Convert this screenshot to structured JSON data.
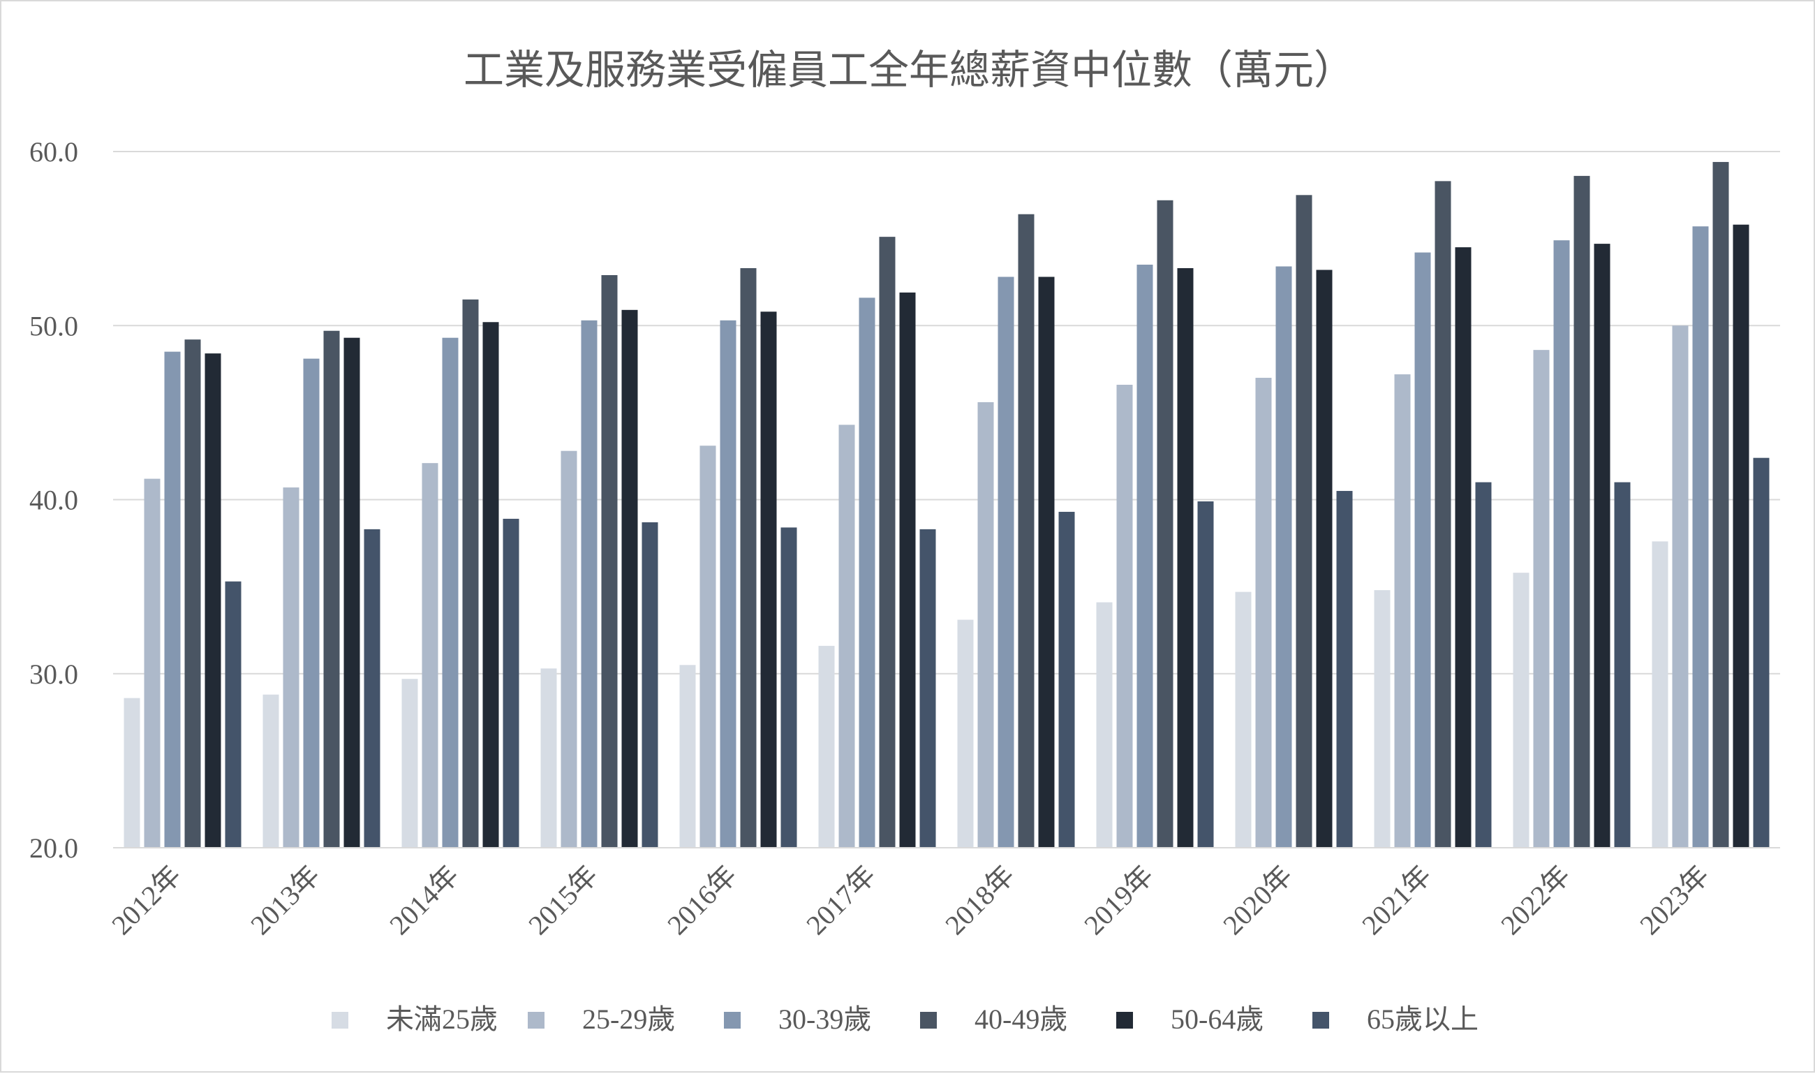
{
  "chart_data": {
    "type": "bar",
    "title": "工業及服務業受僱員工全年總薪資中位數（萬元）",
    "xlabel": "",
    "ylabel": "",
    "categories": [
      "2012年",
      "2013年",
      "2014年",
      "2015年",
      "2016年",
      "2017年",
      "2018年",
      "2019年",
      "2020年",
      "2021年",
      "2022年",
      "2023年"
    ],
    "yticks": [
      "20.0",
      "30.0",
      "40.0",
      "50.0",
      "60.0"
    ],
    "ylim": [
      20,
      60
    ],
    "grid": true,
    "legend_position": "bottom",
    "series": [
      {
        "name": "未滿25歲",
        "color": "#d6dce4",
        "values": [
          28.6,
          28.8,
          29.7,
          30.3,
          30.5,
          31.6,
          33.1,
          34.1,
          34.7,
          34.8,
          35.8,
          37.6
        ]
      },
      {
        "name": "25-29歲",
        "color": "#adb9ca",
        "values": [
          41.2,
          40.7,
          42.1,
          42.8,
          43.1,
          44.3,
          45.6,
          46.6,
          47.0,
          47.2,
          48.6,
          50.0
        ]
      },
      {
        "name": "30-39歲",
        "color": "#8497b0",
        "values": [
          48.5,
          48.1,
          49.3,
          50.3,
          50.3,
          51.6,
          52.8,
          53.5,
          53.4,
          54.2,
          54.9,
          55.7
        ]
      },
      {
        "name": "40-49歲",
        "color": "#4a5563",
        "values": [
          49.2,
          49.7,
          51.5,
          52.9,
          53.3,
          55.1,
          56.4,
          57.2,
          57.5,
          58.3,
          58.6,
          59.4
        ]
      },
      {
        "name": "50-64歲",
        "color": "#222a35",
        "values": [
          48.4,
          49.3,
          50.2,
          50.9,
          50.8,
          51.9,
          52.8,
          53.3,
          53.2,
          54.5,
          54.7,
          55.8
        ]
      },
      {
        "name": "65歲以上",
        "color": "#44546a",
        "values": [
          35.3,
          38.3,
          38.9,
          38.7,
          38.4,
          38.3,
          39.3,
          39.9,
          40.5,
          41.0,
          41.0,
          42.4
        ]
      }
    ]
  }
}
